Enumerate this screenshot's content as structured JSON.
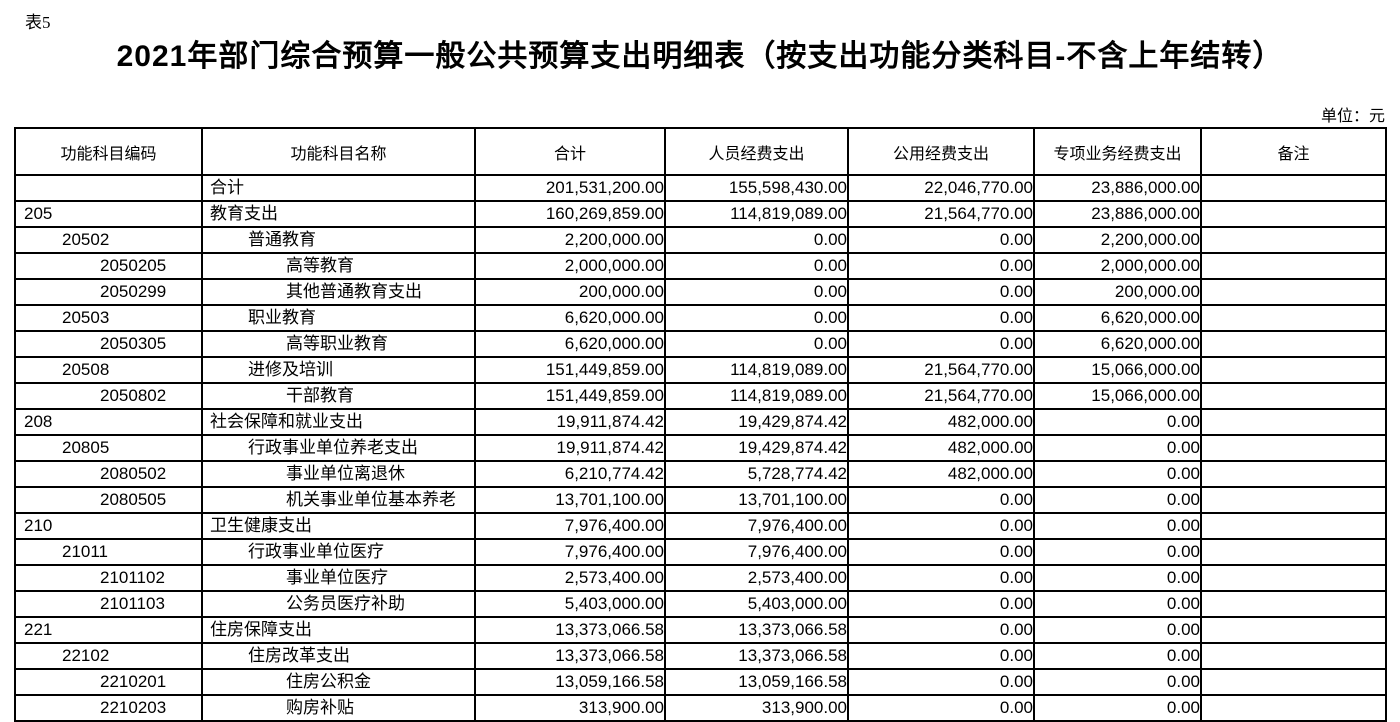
{
  "page": {
    "table_label": "表5",
    "title": "2021年部门综合预算一般公共预算支出明细表（按支出功能分类科目-不含上年结转）",
    "unit_label": "单位：元"
  },
  "table": {
    "columns": [
      "功能科目编码",
      "功能科目名称",
      "合计",
      "人员经费支出",
      "公用经费支出",
      "专项业务经费支出",
      "备注"
    ],
    "rows": [
      {
        "code": "",
        "name": "合计",
        "level": 0,
        "total": "201,531,200.00",
        "personnel": "155,598,430.00",
        "public": "22,046,770.00",
        "special": "23,886,000.00",
        "remark": ""
      },
      {
        "code": "205",
        "name": "教育支出",
        "level": 0,
        "total": "160,269,859.00",
        "personnel": "114,819,089.00",
        "public": "21,564,770.00",
        "special": "23,886,000.00",
        "remark": ""
      },
      {
        "code": "20502",
        "name": "普通教育",
        "level": 1,
        "total": "2,200,000.00",
        "personnel": "0.00",
        "public": "0.00",
        "special": "2,200,000.00",
        "remark": ""
      },
      {
        "code": "2050205",
        "name": "高等教育",
        "level": 2,
        "total": "2,000,000.00",
        "personnel": "0.00",
        "public": "0.00",
        "special": "2,000,000.00",
        "remark": ""
      },
      {
        "code": "2050299",
        "name": "其他普通教育支出",
        "level": 2,
        "total": "200,000.00",
        "personnel": "0.00",
        "public": "0.00",
        "special": "200,000.00",
        "remark": ""
      },
      {
        "code": "20503",
        "name": "职业教育",
        "level": 1,
        "total": "6,620,000.00",
        "personnel": "0.00",
        "public": "0.00",
        "special": "6,620,000.00",
        "remark": ""
      },
      {
        "code": "2050305",
        "name": "高等职业教育",
        "level": 2,
        "total": "6,620,000.00",
        "personnel": "0.00",
        "public": "0.00",
        "special": "6,620,000.00",
        "remark": ""
      },
      {
        "code": "20508",
        "name": "进修及培训",
        "level": 1,
        "total": "151,449,859.00",
        "personnel": "114,819,089.00",
        "public": "21,564,770.00",
        "special": "15,066,000.00",
        "remark": ""
      },
      {
        "code": "2050802",
        "name": "干部教育",
        "level": 2,
        "total": "151,449,859.00",
        "personnel": "114,819,089.00",
        "public": "21,564,770.00",
        "special": "15,066,000.00",
        "remark": ""
      },
      {
        "code": "208",
        "name": "社会保障和就业支出",
        "level": 0,
        "total": "19,911,874.42",
        "personnel": "19,429,874.42",
        "public": "482,000.00",
        "special": "0.00",
        "remark": ""
      },
      {
        "code": "20805",
        "name": "行政事业单位养老支出",
        "level": 1,
        "total": "19,911,874.42",
        "personnel": "19,429,874.42",
        "public": "482,000.00",
        "special": "0.00",
        "remark": ""
      },
      {
        "code": "2080502",
        "name": "事业单位离退休",
        "level": 2,
        "total": "6,210,774.42",
        "personnel": "5,728,774.42",
        "public": "482,000.00",
        "special": "0.00",
        "remark": ""
      },
      {
        "code": "2080505",
        "name": "机关事业单位基本养老",
        "level": 2,
        "total": "13,701,100.00",
        "personnel": "13,701,100.00",
        "public": "0.00",
        "special": "0.00",
        "remark": ""
      },
      {
        "code": "210",
        "name": "卫生健康支出",
        "level": 0,
        "total": "7,976,400.00",
        "personnel": "7,976,400.00",
        "public": "0.00",
        "special": "0.00",
        "remark": ""
      },
      {
        "code": "21011",
        "name": "行政事业单位医疗",
        "level": 1,
        "total": "7,976,400.00",
        "personnel": "7,976,400.00",
        "public": "0.00",
        "special": "0.00",
        "remark": ""
      },
      {
        "code": "2101102",
        "name": "事业单位医疗",
        "level": 2,
        "total": "2,573,400.00",
        "personnel": "2,573,400.00",
        "public": "0.00",
        "special": "0.00",
        "remark": ""
      },
      {
        "code": "2101103",
        "name": "公务员医疗补助",
        "level": 2,
        "total": "5,403,000.00",
        "personnel": "5,403,000.00",
        "public": "0.00",
        "special": "0.00",
        "remark": ""
      },
      {
        "code": "221",
        "name": "住房保障支出",
        "level": 0,
        "total": "13,373,066.58",
        "personnel": "13,373,066.58",
        "public": "0.00",
        "special": "0.00",
        "remark": ""
      },
      {
        "code": "22102",
        "name": "住房改革支出",
        "level": 1,
        "total": "13,373,066.58",
        "personnel": "13,373,066.58",
        "public": "0.00",
        "special": "0.00",
        "remark": ""
      },
      {
        "code": "2210201",
        "name": "住房公积金",
        "level": 2,
        "total": "13,059,166.58",
        "personnel": "13,059,166.58",
        "public": "0.00",
        "special": "0.00",
        "remark": ""
      },
      {
        "code": "2210203",
        "name": "购房补贴",
        "level": 2,
        "total": "313,900.00",
        "personnel": "313,900.00",
        "public": "0.00",
        "special": "0.00",
        "remark": ""
      }
    ]
  }
}
